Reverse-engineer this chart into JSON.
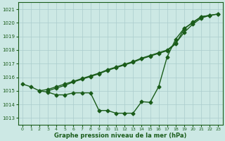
{
  "series1": [
    1015.5,
    1015.3,
    1015.0,
    1014.9,
    1014.7,
    1014.7,
    1014.85,
    1014.85,
    1014.85,
    1013.55,
    1013.55,
    1013.35,
    1013.35,
    1013.35,
    1014.2,
    1014.15,
    1015.3,
    1017.5,
    1018.8,
    1019.6,
    1020.0,
    1020.45,
    1020.55,
    1020.65
  ],
  "series2": [
    null,
    null,
    1015.0,
    1015.1,
    1015.3,
    1015.5,
    1015.7,
    1015.9,
    1016.1,
    1016.3,
    1016.55,
    1016.75,
    1016.95,
    1017.15,
    1017.4,
    1017.6,
    1017.8,
    1018.0,
    1018.5,
    1019.3,
    1019.9,
    1020.35,
    1020.55,
    1020.65
  ],
  "series3": [
    null,
    null,
    null,
    1015.0,
    1015.2,
    1015.4,
    1015.65,
    1015.85,
    1016.05,
    1016.25,
    1016.5,
    1016.7,
    1016.9,
    1017.1,
    1017.35,
    1017.55,
    1017.75,
    1017.95,
    1018.45,
    1019.55,
    1020.05,
    1020.45,
    1020.55,
    null
  ],
  "x": [
    0,
    1,
    2,
    3,
    4,
    5,
    6,
    7,
    8,
    9,
    10,
    11,
    12,
    13,
    14,
    15,
    16,
    17,
    18,
    19,
    20,
    21,
    22,
    23
  ],
  "ylim": [
    1012.5,
    1021.5
  ],
  "yticks": [
    1013,
    1014,
    1015,
    1016,
    1017,
    1018,
    1019,
    1020,
    1021
  ],
  "xticks": [
    0,
    1,
    2,
    3,
    4,
    5,
    6,
    7,
    8,
    9,
    10,
    11,
    12,
    13,
    14,
    15,
    16,
    17,
    18,
    19,
    20,
    21,
    22,
    23
  ],
  "xlabel": "Graphe pression niveau de la mer (hPa)",
  "line_color": "#1a5c1a",
  "bg_color": "#cce8e4",
  "grid_color": "#aacccc",
  "marker": "D",
  "markersize": 2.5,
  "linewidth": 1.0
}
